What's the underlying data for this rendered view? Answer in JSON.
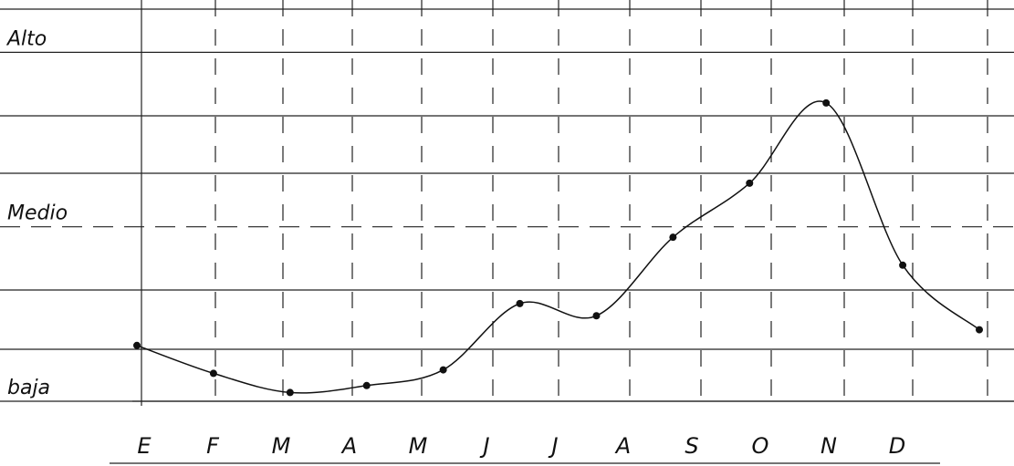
{
  "chart_data": {
    "type": "line",
    "categories": [
      "E",
      "F",
      "M",
      "A",
      "M",
      "J",
      "J",
      "A",
      "S",
      "O",
      "N",
      "D"
    ],
    "values": [
      0.32,
      0.16,
      0.05,
      0.09,
      0.18,
      0.56,
      0.49,
      0.94,
      1.25,
      1.71,
      0.78,
      0.41
    ],
    "color": "#111111",
    "ylim": [
      0,
      2.3
    ],
    "yticks": [
      {
        "value": 0,
        "label": "baja"
      },
      {
        "value": 1,
        "label": "Medio"
      },
      {
        "value": 2,
        "label": "Alto"
      }
    ],
    "grid": true
  }
}
